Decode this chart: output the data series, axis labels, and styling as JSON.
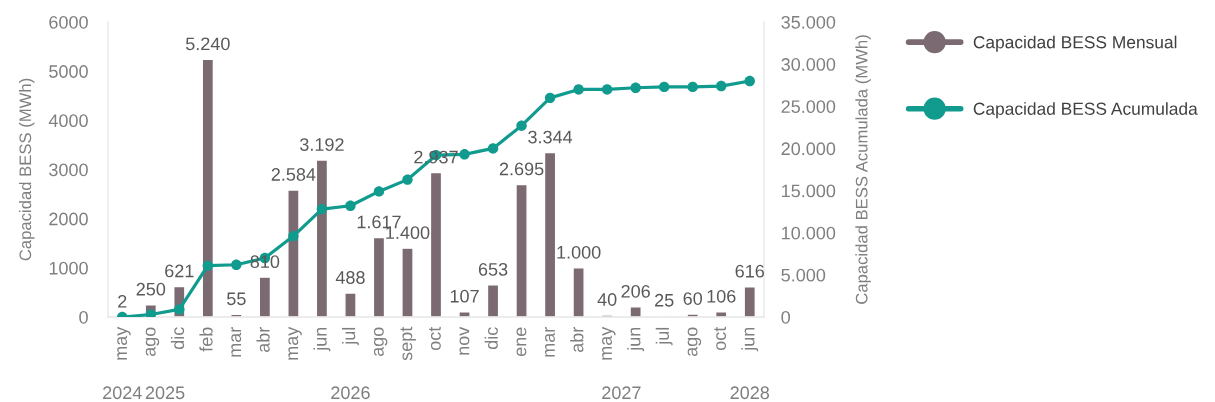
{
  "chart_data": {
    "type": "bar",
    "categories": [
      "may",
      "ago",
      "dic",
      "feb",
      "mar",
      "abr",
      "may",
      "jun",
      "jul",
      "ago",
      "sept",
      "oct",
      "nov",
      "dic",
      "ene",
      "mar",
      "abr",
      "may",
      "jun",
      "jul",
      "ago",
      "oct",
      "jun"
    ],
    "series": [
      {
        "name": "Capacidad BESS Mensual",
        "color": "#7b6a71",
        "values": [
          2,
          250,
          621,
          5240,
          55,
          810,
          2584,
          3192,
          488,
          1617,
          1400,
          2937,
          107,
          653,
          2695,
          3344,
          1000,
          40,
          206,
          25,
          60,
          106,
          616
        ],
        "value_labels": [
          "2",
          "250",
          "621",
          "5.240",
          "55",
          "810",
          "2.584",
          "3.192",
          "488",
          "1.617",
          "1.400",
          "2.937",
          "107",
          "653",
          "2.695",
          "3.344",
          "1.000",
          "40",
          "206",
          "25",
          "60",
          "106",
          "616"
        ]
      },
      {
        "name": "Capacidad BESS Acumulada",
        "type": "line",
        "axis": "y2",
        "color": "#119b8f",
        "values": [
          0,
          300,
          900,
          6100,
          6200,
          7000,
          9600,
          12800,
          13200,
          14900,
          16300,
          19200,
          19300,
          20000,
          22700,
          26000,
          27000,
          27000,
          27200,
          27300,
          27300,
          27400,
          28000
        ]
      }
    ],
    "marker": "circle",
    "ylabel": "Capacidad BESS (MWh)",
    "y2label": "Capacidad BESS Acumulada (MWh)",
    "ylim": [
      0,
      6000
    ],
    "yticks": [
      0,
      1000,
      2000,
      3000,
      4000,
      5000,
      6000
    ],
    "y2lim": [
      0,
      35000
    ],
    "y2ticks": [
      {
        "value": 0,
        "label": "0"
      },
      {
        "value": 5000,
        "label": "5.000"
      },
      {
        "value": 10000,
        "label": "10.000"
      },
      {
        "value": 15000,
        "label": "15.000"
      },
      {
        "value": 20000,
        "label": "20.000"
      },
      {
        "value": 25000,
        "label": "25.000"
      },
      {
        "value": 30000,
        "label": "30.000"
      },
      {
        "value": 35000,
        "label": "35.000"
      }
    ],
    "legend": "right",
    "annotations": [
      "2024",
      "2025",
      "2026",
      "2027",
      "2028"
    ]
  }
}
